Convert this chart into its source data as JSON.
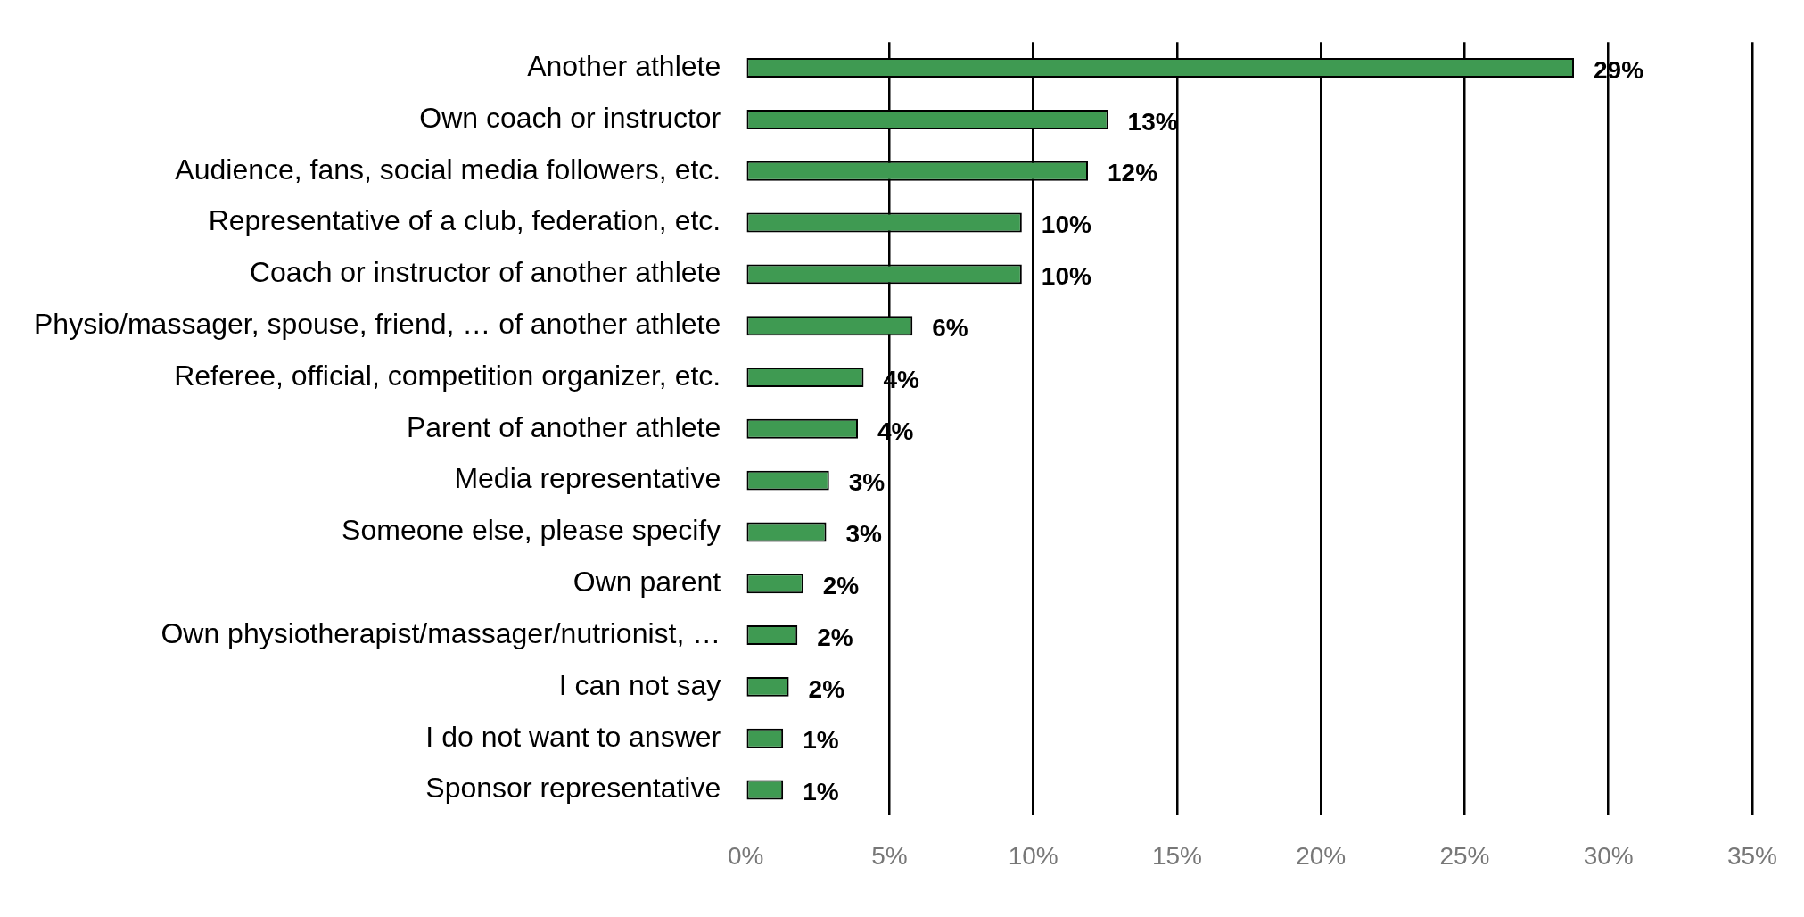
{
  "chart_data": {
    "type": "bar",
    "orientation": "horizontal",
    "categories": [
      "Another athlete",
      "Own coach or instructor",
      "Audience, fans, social media followers, etc.",
      "Representative of a club, federation, etc.",
      "Coach or instructor of another athlete",
      "Physio/massager, spouse, friend, … of another athlete",
      "Referee, official, competition organizer, etc.",
      "Parent of another athlete",
      "Media representative",
      "Someone else, please specify",
      "Own parent",
      "Own physiotherapist/massager/nutrionist, …",
      "I can not say",
      "I do not want to answer",
      "Sponsor representative"
    ],
    "values": [
      28.8,
      12.6,
      11.9,
      9.6,
      9.6,
      5.8,
      4.1,
      3.9,
      2.9,
      2.8,
      2.0,
      1.8,
      1.5,
      1.3,
      1.3
    ],
    "value_labels": [
      "29%",
      "13%",
      "12%",
      "10%",
      "10%",
      "6%",
      "4%",
      "4%",
      "3%",
      "3%",
      "2%",
      "2%",
      "2%",
      "1%",
      "1%"
    ],
    "color": "#3f9a52",
    "xlim": [
      0,
      35
    ],
    "xticks": [
      {
        "value": 0,
        "label": "0%"
      },
      {
        "value": 5,
        "label": "5%"
      },
      {
        "value": 10,
        "label": "10%"
      },
      {
        "value": 15,
        "label": "15%"
      },
      {
        "value": 20,
        "label": "20%"
      },
      {
        "value": 25,
        "label": "25%"
      },
      {
        "value": 30,
        "label": "30%"
      },
      {
        "value": 35,
        "label": "35%"
      }
    ],
    "grid": "x",
    "legend": false
  }
}
